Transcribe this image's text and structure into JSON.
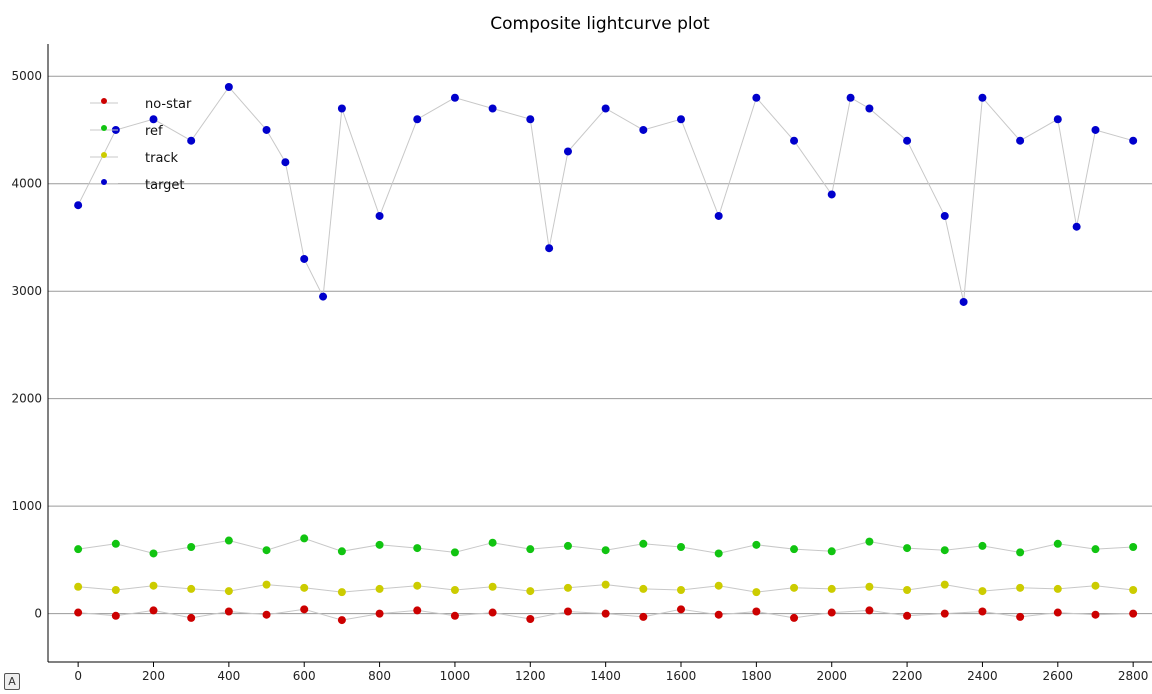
{
  "chart_data": {
    "type": "scatter",
    "title": "Composite lightcurve plot",
    "xlabel": "",
    "ylabel": "",
    "xlim": [
      -80,
      2850
    ],
    "ylim": [
      -450,
      5300
    ],
    "x_ticks": [
      0,
      200,
      400,
      600,
      800,
      1000,
      1200,
      1400,
      1600,
      1800,
      2000,
      2200,
      2400,
      2600,
      2800
    ],
    "y_ticks": [
      0,
      1000,
      2000,
      3000,
      4000,
      5000
    ],
    "grid": "horizontal",
    "legend_position": "top-left",
    "series": [
      {
        "name": "no-star",
        "color": "#cc0000",
        "x": [
          0,
          100,
          200,
          300,
          400,
          500,
          600,
          700,
          800,
          900,
          1000,
          1100,
          1200,
          1300,
          1400,
          1500,
          1600,
          1700,
          1800,
          1900,
          2000,
          2100,
          2200,
          2300,
          2400,
          2500,
          2600,
          2700,
          2800
        ],
        "y": [
          10,
          -20,
          30,
          -40,
          20,
          -10,
          40,
          -60,
          0,
          30,
          -20,
          10,
          -50,
          20,
          0,
          -30,
          40,
          -10,
          20,
          -40,
          10,
          30,
          -20,
          0,
          20,
          -30,
          10,
          -10,
          0
        ]
      },
      {
        "name": "ref",
        "color": "#11c411",
        "x": [
          0,
          100,
          200,
          300,
          400,
          500,
          600,
          700,
          800,
          900,
          1000,
          1100,
          1200,
          1300,
          1400,
          1500,
          1600,
          1700,
          1800,
          1900,
          2000,
          2100,
          2200,
          2300,
          2400,
          2500,
          2600,
          2700,
          2800
        ],
        "y": [
          600,
          650,
          560,
          620,
          680,
          590,
          700,
          580,
          640,
          610,
          570,
          660,
          600,
          630,
          590,
          650,
          620,
          560,
          640,
          600,
          580,
          670,
          610,
          590,
          630,
          570,
          650,
          600,
          620
        ]
      },
      {
        "name": "track",
        "color": "#cccc00",
        "x": [
          0,
          100,
          200,
          300,
          400,
          500,
          600,
          700,
          800,
          900,
          1000,
          1100,
          1200,
          1300,
          1400,
          1500,
          1600,
          1700,
          1800,
          1900,
          2000,
          2100,
          2200,
          2300,
          2400,
          2500,
          2600,
          2700,
          2800
        ],
        "y": [
          250,
          220,
          260,
          230,
          210,
          270,
          240,
          200,
          230,
          260,
          220,
          250,
          210,
          240,
          270,
          230,
          220,
          260,
          200,
          240,
          230,
          250,
          220,
          270,
          210,
          240,
          230,
          260,
          220
        ]
      },
      {
        "name": "target",
        "color": "#0000cc",
        "x": [
          0,
          100,
          200,
          300,
          400,
          500,
          550,
          600,
          650,
          700,
          800,
          900,
          1000,
          1100,
          1200,
          1250,
          1300,
          1400,
          1500,
          1600,
          1700,
          1800,
          1900,
          2000,
          2050,
          2100,
          2200,
          2300,
          2350,
          2400,
          2500,
          2600,
          2650,
          2700,
          2800
        ],
        "y": [
          3800,
          4500,
          4600,
          4400,
          4900,
          4500,
          4200,
          3300,
          2950,
          4700,
          3700,
          4600,
          4800,
          4700,
          4600,
          3400,
          4300,
          4700,
          4500,
          4600,
          3700,
          4800,
          4400,
          3900,
          4800,
          4700,
          4400,
          3700,
          2900,
          4800,
          4400,
          4600,
          3600,
          4500,
          4400
        ]
      }
    ]
  },
  "ui": {
    "corner_badge": "A"
  }
}
